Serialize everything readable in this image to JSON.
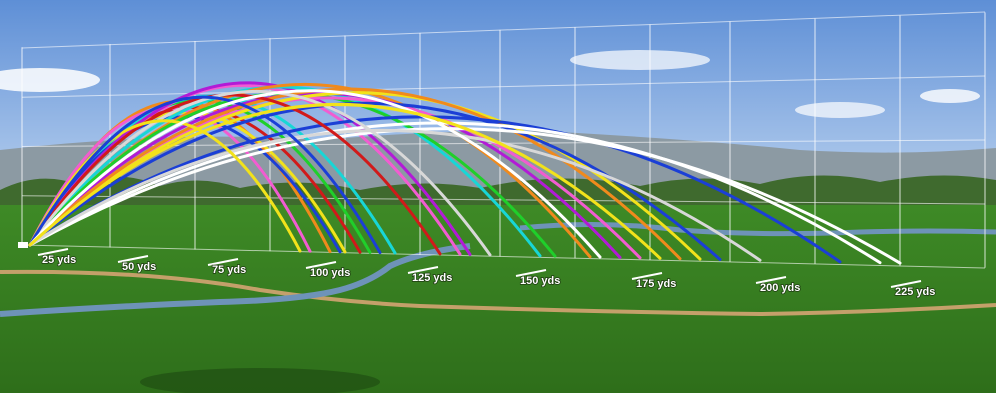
{
  "colors": {
    "sky_top": "#5e8fd6",
    "sky_bottom": "#b9d1ef",
    "mountain": "#8c9aa3",
    "treeline": "#3f6a2e",
    "fairway": "#3e8a26",
    "fairway_dark": "#2e6e1a",
    "path": "#c4a06a",
    "water": "#6e93b8",
    "grid": "#ffffff"
  },
  "yard_markers": [
    {
      "label": "25 yds"
    },
    {
      "label": "50 yds"
    },
    {
      "label": "75 yds"
    },
    {
      "label": "100 yds"
    },
    {
      "label": "125 yds"
    },
    {
      "label": "150 yds"
    },
    {
      "label": "175 yds"
    },
    {
      "label": "200 yds"
    },
    {
      "label": "225 yds"
    }
  ],
  "trajectory_colors": [
    "#d11a1a",
    "#f08a1c",
    "#f2e21b",
    "#1fcf2a",
    "#18d6d6",
    "#1b3fd6",
    "#f25cd1",
    "#b21bd6",
    "#ffffff",
    "#d8d8d8"
  ]
}
